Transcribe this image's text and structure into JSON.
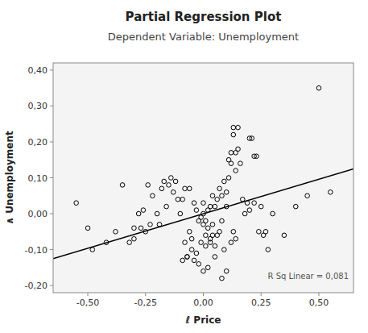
{
  "chart_data": {
    "type": "scatter",
    "title": "Partial Regression Plot",
    "subtitle": "Dependent Variable: Unemployment",
    "x_label": "ℓ  Price",
    "y_label": "∧  Unemployment",
    "annotation": "R Sq Linear = 0,081",
    "xlim": [
      -0.65,
      0.65
    ],
    "ylim": [
      -0.22,
      0.42
    ],
    "xticks": [
      {
        "value": -0.5,
        "label": "-0,50"
      },
      {
        "value": -0.25,
        "label": "-0,25"
      },
      {
        "value": 0.0,
        "label": "0,00"
      },
      {
        "value": 0.25,
        "label": "0,25"
      },
      {
        "value": 0.5,
        "label": "0,50"
      }
    ],
    "yticks": [
      {
        "value": -0.2,
        "label": "-0,20"
      },
      {
        "value": -0.1,
        "label": "-0,10"
      },
      {
        "value": 0.0,
        "label": "0,00"
      },
      {
        "value": 0.1,
        "label": "0,10"
      },
      {
        "value": 0.2,
        "label": "0,20"
      },
      {
        "value": 0.3,
        "label": "0,30"
      },
      {
        "value": 0.4,
        "label": "0,40"
      }
    ],
    "grid": false,
    "series": [
      {
        "type": "scatter",
        "color": "#000000",
        "marker": "circle",
        "x": [
          -0.55,
          -0.48,
          -0.42,
          -0.38,
          -0.32,
          -0.3,
          -0.28,
          -0.25,
          -0.24,
          -0.22,
          -0.2,
          -0.18,
          -0.16,
          -0.14,
          -0.12,
          -0.1,
          -0.09,
          -0.07,
          -0.05,
          -0.03,
          -0.01,
          0.0,
          0.01,
          0.02,
          0.03,
          0.04,
          0.05,
          0.06,
          0.07,
          0.08,
          0.09,
          0.1,
          0.11,
          0.12,
          0.13,
          0.14,
          0.15,
          0.16,
          0.17,
          0.18,
          0.19,
          0.2,
          0.21,
          0.22,
          0.23,
          0.25,
          0.3,
          0.35,
          0.5,
          0.55,
          -0.5,
          -0.35,
          -0.3,
          -0.27,
          -0.26,
          -0.23,
          -0.19,
          -0.17,
          -0.15,
          -0.13,
          -0.11,
          -0.08,
          -0.06,
          -0.04,
          -0.02,
          0.0,
          0.0,
          0.01,
          0.02,
          0.03,
          0.04,
          0.05,
          0.06,
          0.07,
          0.08,
          0.09,
          0.1,
          0.11,
          0.12,
          0.13,
          0.14,
          0.15,
          0.2,
          0.22,
          0.24,
          0.26,
          0.27,
          0.28,
          0.4,
          0.45,
          -0.04,
          -0.03,
          -0.02,
          -0.01,
          0.0,
          0.01,
          0.02,
          0.03,
          -0.05,
          -0.06,
          -0.07,
          -0.08,
          -0.09,
          0.04,
          0.05,
          0.1,
          0.12,
          0.13,
          0.14,
          0.08
        ],
        "values": [
          0.03,
          -0.1,
          -0.08,
          -0.05,
          -0.08,
          -0.04,
          0.0,
          -0.05,
          0.08,
          0.05,
          0.0,
          0.07,
          0.02,
          0.1,
          0.09,
          0.0,
          0.04,
          -0.12,
          -0.07,
          0.01,
          -0.01,
          0.0,
          -0.06,
          0.01,
          -0.08,
          0.05,
          -0.09,
          0.04,
          0.07,
          0.05,
          0.09,
          0.02,
          0.15,
          0.14,
          0.22,
          0.12,
          0.18,
          0.14,
          0.04,
          0.0,
          0.03,
          0.01,
          0.21,
          0.03,
          0.16,
          0.02,
          0.0,
          -0.06,
          0.35,
          0.06,
          -0.04,
          0.08,
          -0.07,
          -0.04,
          0.01,
          -0.03,
          -0.03,
          0.09,
          0.08,
          0.06,
          0.04,
          0.07,
          0.07,
          0.03,
          -0.02,
          0.03,
          -0.03,
          -0.02,
          -0.04,
          0.02,
          -0.03,
          0.02,
          -0.06,
          -0.05,
          -0.02,
          -0.1,
          0.06,
          0.1,
          0.17,
          0.24,
          0.17,
          0.24,
          0.21,
          0.16,
          -0.05,
          -0.06,
          -0.05,
          -0.1,
          0.02,
          0.05,
          -0.13,
          -0.11,
          -0.14,
          -0.08,
          -0.16,
          -0.09,
          -0.15,
          -0.07,
          -0.1,
          -0.05,
          -0.12,
          -0.08,
          -0.13,
          -0.06,
          -0.12,
          -0.16,
          -0.08,
          -0.05,
          -0.07,
          -0.18
        ]
      },
      {
        "type": "line",
        "color": "#000000",
        "line_style": "solid",
        "x": [
          -0.65,
          0.65
        ],
        "values": [
          -0.125,
          0.125
        ]
      }
    ]
  }
}
